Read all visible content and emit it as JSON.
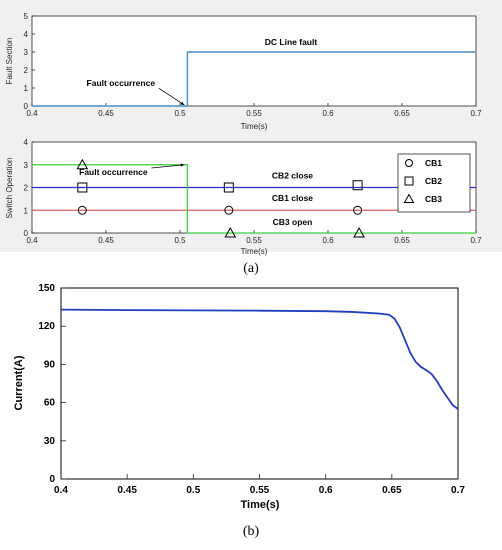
{
  "figure": {
    "caption_a": "(a)",
    "caption_b": "(b)"
  },
  "chart_data": [
    {
      "type": "line",
      "id": "fault",
      "xlabel": "Time(s)",
      "ylabel": "Fault Section",
      "xlim": [
        0.4,
        0.7
      ],
      "ylim": [
        0,
        5
      ],
      "xticks": [
        0.4,
        0.45,
        0.5,
        0.55,
        0.6,
        0.65,
        0.7
      ],
      "xtick_labels": [
        "0.4",
        "0.45",
        "0.5",
        "0.55",
        "0.6",
        "0.65",
        "0.7"
      ],
      "yticks": [
        0,
        1,
        2,
        3,
        4,
        5
      ],
      "ytick_labels": [
        "0",
        "1",
        "2",
        "3",
        "4",
        "5"
      ],
      "grid": false,
      "series": [
        {
          "color": "#4a8fc4",
          "x": [
            0.4,
            0.505,
            0.505,
            0.7
          ],
          "y": [
            0,
            0,
            3,
            3
          ]
        }
      ],
      "annotations": [
        {
          "text": "DC Line fault",
          "x": 0.575,
          "y": 3.4
        },
        {
          "text": "Fault occurrence",
          "x": 0.46,
          "y": 1.1,
          "arrow_to": [
            0.503,
            0.05
          ]
        }
      ]
    },
    {
      "type": "line",
      "id": "switch",
      "xlabel": "Time(s)",
      "ylabel": "Switch Operation",
      "xlim": [
        0.4,
        0.7
      ],
      "ylim": [
        0,
        4
      ],
      "xticks": [
        0.4,
        0.45,
        0.5,
        0.55,
        0.6,
        0.65,
        0.7
      ],
      "xtick_labels": [
        "0.4",
        "0.45",
        "0.5",
        "0.55",
        "0.6",
        "0.65",
        "0.7"
      ],
      "yticks": [
        0,
        1,
        2,
        3,
        4
      ],
      "ytick_labels": [
        "0",
        "1",
        "2",
        "3",
        "4"
      ],
      "grid": false,
      "legend": "right",
      "series": [
        {
          "name": "CB1",
          "color": "#d06060",
          "marker": "circle",
          "x": [
            0.4,
            0.7
          ],
          "y": [
            1,
            1
          ],
          "markers": {
            "x": [
              0.434,
              0.533,
              0.62
            ],
            "y": [
              1,
              1,
              1
            ]
          }
        },
        {
          "name": "CB2",
          "color": "#2b2bd0",
          "marker": "square",
          "x": [
            0.4,
            0.7
          ],
          "y": [
            2,
            2
          ],
          "markers": {
            "x": [
              0.434,
              0.533,
              0.62
            ],
            "y": [
              2,
              2,
              2.1
            ]
          }
        },
        {
          "name": "CB3",
          "color": "#39d139",
          "marker": "triangle",
          "x": [
            0.4,
            0.505,
            0.505,
            0.7
          ],
          "y": [
            3,
            3,
            0,
            0
          ],
          "markers": {
            "x": [
              0.434,
              0.534,
              0.621
            ],
            "y": [
              3,
              0,
              0
            ]
          }
        }
      ],
      "annotations": [
        {
          "text": "Fault occurrence",
          "x": 0.455,
          "y": 2.55,
          "arrow_to": [
            0.503,
            3.0
          ]
        },
        {
          "text": "CB2 close",
          "x": 0.576,
          "y": 2.4
        },
        {
          "text": "CB1 close",
          "x": 0.576,
          "y": 1.4
        },
        {
          "text": "CB3 open",
          "x": 0.576,
          "y": 0.35
        }
      ]
    },
    {
      "type": "line",
      "id": "current",
      "xlabel": "Time(s)",
      "ylabel": "Current(A)",
      "xlim": [
        0.4,
        0.7
      ],
      "ylim": [
        0,
        150
      ],
      "xticks": [
        0.4,
        0.45,
        0.5,
        0.55,
        0.6,
        0.65,
        0.7
      ],
      "xtick_labels": [
        "0.4",
        "0.45",
        "0.5",
        "0.55",
        "0.6",
        "0.65",
        "0.7"
      ],
      "yticks": [
        0,
        30,
        60,
        90,
        120,
        150
      ],
      "ytick_labels": [
        "0",
        "30",
        "60",
        "90",
        "120",
        "150"
      ],
      "grid": false,
      "series": [
        {
          "color": "#1f3fbf",
          "x": [
            0.4,
            0.45,
            0.5,
            0.55,
            0.6,
            0.62,
            0.64,
            0.648,
            0.652,
            0.656,
            0.66,
            0.664,
            0.668,
            0.672,
            0.676,
            0.68,
            0.684,
            0.688,
            0.692,
            0.696,
            0.7
          ],
          "y": [
            133,
            132.6,
            132.4,
            132.2,
            131.8,
            131.2,
            130,
            129,
            126,
            119,
            109,
            99,
            92,
            88,
            85.5,
            82.5,
            77,
            70,
            64,
            58,
            55
          ]
        }
      ]
    }
  ]
}
